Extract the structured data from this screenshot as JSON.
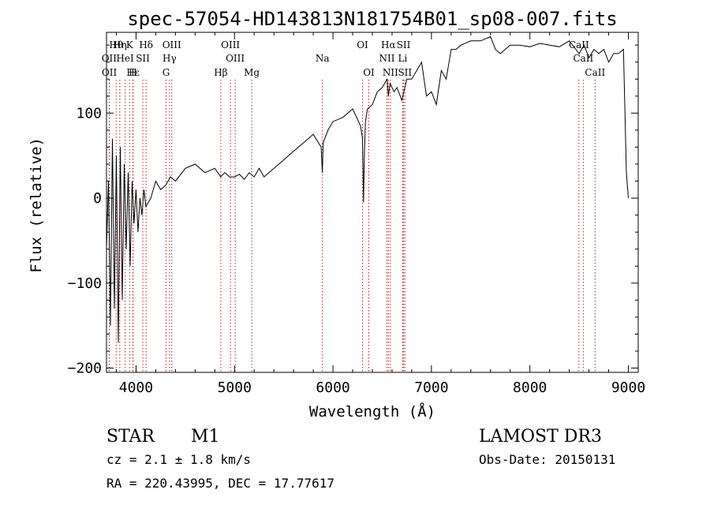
{
  "chart_data": {
    "type": "line",
    "title": "spec-57054-HD143813N181754B01_sp08-007.fits",
    "xlabel": "Wavelength (Å)",
    "ylabel": "Flux (relative)",
    "xlim": [
      3700,
      9100
    ],
    "ylim": [
      -205,
      195
    ],
    "xticks": [
      4000,
      5000,
      6000,
      7000,
      8000,
      9000
    ],
    "yticks": [
      -200,
      -100,
      0,
      100
    ],
    "xtick_labels": [
      "4000",
      "5000",
      "6000",
      "7000",
      "8000",
      "9000"
    ],
    "ytick_labels": [
      "−200",
      "−100",
      "0",
      "100"
    ],
    "series": [
      {
        "x": [
          3700,
          3720,
          3740,
          3760,
          3780,
          3800,
          3820,
          3840,
          3860,
          3880,
          3900,
          3920,
          3940,
          3960,
          3980,
          4000,
          4020,
          4040,
          4060,
          4080,
          4100,
          4150,
          4200,
          4250,
          4300,
          4350,
          4400,
          4500,
          4600,
          4700,
          4800,
          4860,
          4900,
          4950,
          5000,
          5050,
          5100,
          5150,
          5200,
          5250,
          5300,
          5400,
          5500,
          5600,
          5700,
          5800,
          5880,
          5892,
          5900,
          5950,
          6000,
          6100,
          6200,
          6280,
          6300,
          6310,
          6320,
          6330,
          6350,
          6400,
          6450,
          6500,
          6550,
          6563,
          6580,
          6620,
          6650,
          6700,
          6750,
          6800,
          6850,
          6900,
          6950,
          7000,
          7050,
          7100,
          7150,
          7200,
          7250,
          7300,
          7400,
          7500,
          7600,
          7650,
          7700,
          7800,
          7900,
          8000,
          8100,
          8200,
          8300,
          8400,
          8500,
          8550,
          8600,
          8650,
          8700,
          8750,
          8800,
          8850,
          8900,
          8950,
          8980,
          9000
        ],
        "y": [
          -60,
          20,
          -150,
          70,
          -130,
          50,
          -170,
          60,
          -120,
          40,
          -60,
          30,
          -80,
          20,
          -30,
          10,
          -40,
          0,
          -20,
          10,
          -10,
          0,
          20,
          10,
          15,
          25,
          20,
          35,
          40,
          30,
          35,
          25,
          30,
          25,
          25,
          28,
          22,
          30,
          25,
          35,
          25,
          35,
          45,
          55,
          65,
          75,
          60,
          30,
          65,
          80,
          90,
          95,
          105,
          85,
          70,
          -5,
          55,
          90,
          105,
          110,
          125,
          130,
          140,
          120,
          135,
          125,
          130,
          115,
          140,
          140,
          150,
          160,
          120,
          125,
          110,
          150,
          140,
          175,
          175,
          180,
          185,
          185,
          190,
          175,
          170,
          180,
          180,
          178,
          182,
          180,
          178,
          185,
          170,
          180,
          165,
          175,
          170,
          175,
          160,
          170,
          170,
          175,
          30,
          0
        ]
      }
    ],
    "spectral_lines": [
      {
        "name": "Hθ",
        "x": 3798,
        "row": 1
      },
      {
        "name": "Hη",
        "x": 3835,
        "row": 1
      },
      {
        "name": "K",
        "x": 3934,
        "row": 1
      },
      {
        "name": "Hδ",
        "x": 4102,
        "row": 1
      },
      {
        "name": "OIII",
        "x": 4363,
        "row": 1
      },
      {
        "name": "OIII",
        "x": 4959,
        "row": 1
      },
      {
        "name": "OI",
        "x": 6300,
        "row": 1
      },
      {
        "name": "Hα",
        "x": 6563,
        "row": 1
      },
      {
        "name": "SII",
        "x": 6717,
        "row": 1
      },
      {
        "name": "CaII",
        "x": 8498,
        "row": 1
      },
      {
        "name": "OII",
        "x": 3727,
        "row": 2
      },
      {
        "name": "HeI",
        "x": 3889,
        "row": 2
      },
      {
        "name": "SII",
        "x": 4069,
        "row": 2
      },
      {
        "name": "Hγ",
        "x": 4340,
        "row": 2
      },
      {
        "name": "OIII",
        "x": 5007,
        "row": 2
      },
      {
        "name": "Na",
        "x": 5893,
        "row": 2
      },
      {
        "name": "NII",
        "x": 6548,
        "row": 2
      },
      {
        "name": "Li",
        "x": 6708,
        "row": 2
      },
      {
        "name": "CaII",
        "x": 8542,
        "row": 2
      },
      {
        "name": "OII",
        "x": 3729,
        "row": 3
      },
      {
        "name": "Hε",
        "x": 3970,
        "row": 3
      },
      {
        "name": "H",
        "x": 3968,
        "row": 3
      },
      {
        "name": "G",
        "x": 4305,
        "row": 3
      },
      {
        "name": "Hβ",
        "x": 4861,
        "row": 3
      },
      {
        "name": "Mg",
        "x": 5175,
        "row": 3
      },
      {
        "name": "OI",
        "x": 6364,
        "row": 3
      },
      {
        "name": "NII",
        "x": 6583,
        "row": 3
      },
      {
        "name": "SII",
        "x": 6731,
        "row": 3
      },
      {
        "name": "CaII",
        "x": 8662,
        "row": 3
      }
    ],
    "line_color": "#000000",
    "marker_color": "#b22222"
  },
  "info": {
    "object_type": "STAR",
    "subclass": "M1",
    "survey": "LAMOST DR3",
    "cz": "cz = 2.1 ± 1.8 km/s",
    "obs_date": "Obs-Date: 20150131",
    "coords": "RA = 220.43995, DEC =  17.77617"
  }
}
